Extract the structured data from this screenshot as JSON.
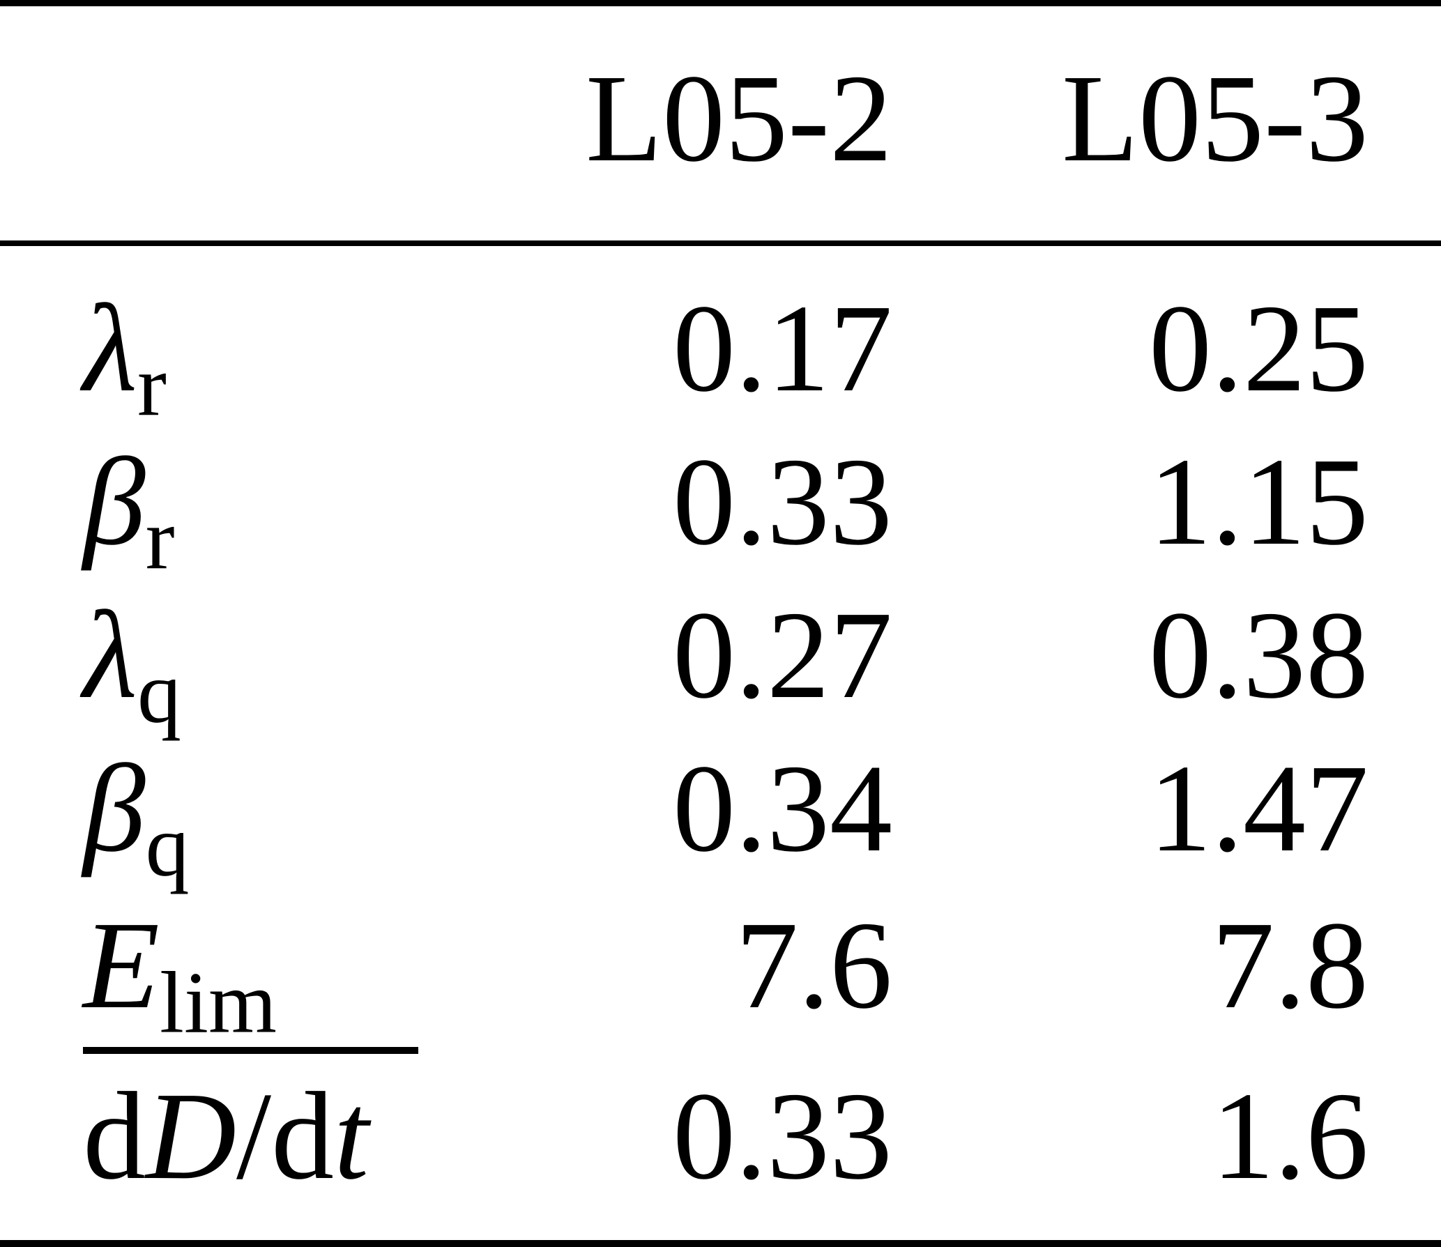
{
  "page": {
    "background_color": "#ffffff",
    "text_color": "#000000"
  },
  "table": {
    "header": {
      "col1": "",
      "col2": "L05-2",
      "col3": "L05-3"
    },
    "rows": [
      {
        "name": "lambda-r",
        "label_parts": [
          {
            "text": "λ",
            "style": "italic"
          },
          {
            "text": "r",
            "style": "subscript"
          }
        ],
        "values": [
          "0.17",
          "0.25"
        ]
      },
      {
        "name": "beta-r",
        "label_parts": [
          {
            "text": "β",
            "style": "italic"
          },
          {
            "text": "r",
            "style": "subscript"
          }
        ],
        "values": [
          "0.33",
          "1.15"
        ]
      },
      {
        "name": "lambda-q",
        "label_parts": [
          {
            "text": "λ",
            "style": "italic"
          },
          {
            "text": "q",
            "style": "subscript"
          }
        ],
        "values": [
          "0.27",
          "0.38"
        ]
      },
      {
        "name": "beta-q",
        "label_parts": [
          {
            "text": "β",
            "style": "italic"
          },
          {
            "text": "q",
            "style": "subscript"
          }
        ],
        "values": [
          "0.34",
          "1.47"
        ]
      },
      {
        "name": "E-lim",
        "label_parts": [
          {
            "text": "E",
            "style": "italic"
          },
          {
            "text": "lim",
            "style": "subscript"
          }
        ],
        "values": [
          "7.6",
          "7.8"
        ],
        "underline_below": true
      },
      {
        "name": "dD-dt",
        "label_parts": [
          {
            "text": "d",
            "style": "upright"
          },
          {
            "text": "D",
            "style": "italic"
          },
          {
            "text": "/",
            "style": "upright"
          },
          {
            "text": "d",
            "style": "upright"
          },
          {
            "text": "t",
            "style": "italic"
          }
        ],
        "values": [
          "0.33",
          "1.6"
        ]
      }
    ]
  },
  "chart_data": {
    "type": "table",
    "columns": [
      "",
      "L05-2",
      "L05-3"
    ],
    "rows": [
      [
        "λ_r",
        0.17,
        0.25
      ],
      [
        "β_r",
        0.33,
        1.15
      ],
      [
        "λ_q",
        0.27,
        0.38
      ],
      [
        "β_q",
        0.34,
        1.47
      ],
      [
        "E_lim",
        7.6,
        7.8
      ],
      [
        "dD/dt",
        0.33,
        1.6
      ]
    ]
  }
}
